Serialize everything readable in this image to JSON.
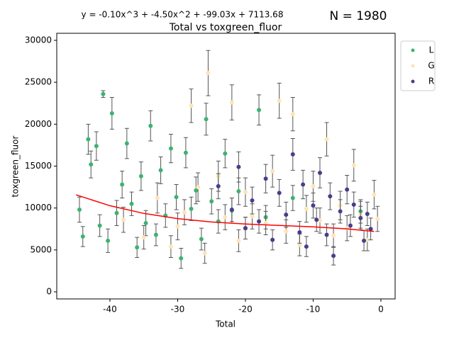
{
  "chart_data": {
    "type": "scatter",
    "title": "Total vs toxgreen_fluor",
    "equation": "y = -0.10x^3 + -4.50x^2 + -99.03x + 7113.68",
    "count_label": "N = 1980",
    "x_label": "Total",
    "y_label": "toxgreen_fluor",
    "xlim": [
      -47.85,
      2.1
    ],
    "ylim": [
      -845,
      30845
    ],
    "xticks": [
      -40,
      -30,
      -20,
      -10,
      0
    ],
    "yticks": [
      0,
      5000,
      10000,
      15000,
      20000,
      25000,
      30000
    ],
    "grid": false,
    "legend": "outside-upper-right",
    "error_color": "#555555",
    "series": [
      {
        "name": "L",
        "color": "#3cb371",
        "x": [
          -44.5,
          -44,
          -43.2,
          -42.8,
          -42,
          -41.5,
          -41,
          -40.3,
          -39.7,
          -39,
          -38.2,
          -37.5,
          -36.8,
          -36,
          -35.4,
          -34.7,
          -34,
          -33.2,
          -32.5,
          -31.8,
          -31,
          -30.2,
          -29.5,
          -28.8,
          -28,
          -27.3,
          -26.5,
          -25.8,
          -25,
          -24,
          -23,
          -22,
          -21,
          -20,
          -18,
          -17,
          -13,
          -3
        ],
        "values": [
          9800,
          6600,
          18200,
          15200,
          17400,
          7900,
          23600,
          6100,
          21300,
          9400,
          12800,
          17700,
          10500,
          5300,
          13800,
          8200,
          19800,
          6800,
          14500,
          9100,
          17100,
          11300,
          4000,
          16600,
          9900,
          12100,
          6300,
          20600,
          10800,
          8400,
          16500,
          9700,
          12000,
          7600,
          21700,
          8900,
          11200,
          9600
        ],
        "errors": [
          1500,
          1200,
          1800,
          1600,
          1700,
          1300,
          400,
          1400,
          1900,
          1500,
          1600,
          1800,
          1400,
          1200,
          1700,
          1500,
          1800,
          1300,
          1600,
          1400,
          1700,
          1500,
          1200,
          1800,
          1400,
          1600,
          1300,
          1900,
          1500,
          1400,
          1700,
          1500,
          1600,
          1300,
          1800,
          1400,
          1500,
          1400
        ]
      },
      {
        "name": "G",
        "color": "#ffe4b5",
        "x": [
          -38,
          -35,
          -33,
          -31,
          -30,
          -29,
          -28,
          -27,
          -26,
          -25.5,
          -24,
          -23,
          -22,
          -21,
          -20,
          -19,
          -17,
          -16,
          -15,
          -14,
          -13,
          -12,
          -11,
          -10,
          -9,
          -8,
          -7,
          -6,
          -5,
          -4,
          -3,
          -2,
          -1,
          -0.5
        ],
        "values": [
          8600,
          6500,
          11200,
          5400,
          7800,
          9500,
          22200,
          12500,
          4600,
          26100,
          13800,
          8900,
          22600,
          6100,
          11900,
          9000,
          8200,
          14400,
          22800,
          7200,
          21200,
          5600,
          9900,
          12600,
          8500,
          18200,
          6700,
          10300,
          7600,
          15100,
          9200,
          6200,
          11600,
          8700
        ],
        "errors": [
          1500,
          1400,
          1800,
          1300,
          1600,
          1500,
          2000,
          1700,
          1200,
          2700,
          1800,
          1500,
          2100,
          1300,
          1700,
          1500,
          1400,
          1900,
          2100,
          1400,
          2000,
          1300,
          1600,
          1800,
          1500,
          2000,
          1400,
          1700,
          1500,
          1900,
          1600,
          1300,
          1700,
          1500
        ]
      },
      {
        "name": "R",
        "color": "#483d8b",
        "x": [
          -24,
          -22,
          -21,
          -20,
          -19,
          -18,
          -17,
          -16,
          -15,
          -14,
          -13,
          -12,
          -11.5,
          -11,
          -10,
          -9.5,
          -9,
          -8,
          -7.5,
          -7,
          -6,
          -5,
          -4.5,
          -4,
          -3,
          -2.5,
          -2,
          -1.5
        ],
        "values": [
          12600,
          9800,
          14900,
          7600,
          10900,
          8400,
          13500,
          6200,
          11800,
          9200,
          16400,
          7100,
          12800,
          5400,
          10300,
          8600,
          14200,
          6800,
          11400,
          4300,
          9600,
          12200,
          7900,
          10400,
          8800,
          6100,
          9300,
          7500
        ],
        "errors": [
          1500,
          1400,
          1800,
          1300,
          1600,
          1400,
          1700,
          1200,
          1600,
          1500,
          1900,
          1300,
          1700,
          1200,
          1500,
          1400,
          1800,
          1300,
          1600,
          1100,
          1400,
          1700,
          1300,
          1500,
          1400,
          1200,
          1400,
          1300
        ]
      }
    ],
    "fit": {
      "color": "#ff0000",
      "x": [
        -45,
        -40,
        -35,
        -30,
        -25,
        -20,
        -15,
        -10,
        -5,
        -1
      ],
      "values": [
        11570.03,
        10274.88,
        9354.73,
        8734.58,
        8339.43,
        8094.28,
        7924.13,
        7753.98,
        7508.83,
        7208.31
      ]
    }
  }
}
